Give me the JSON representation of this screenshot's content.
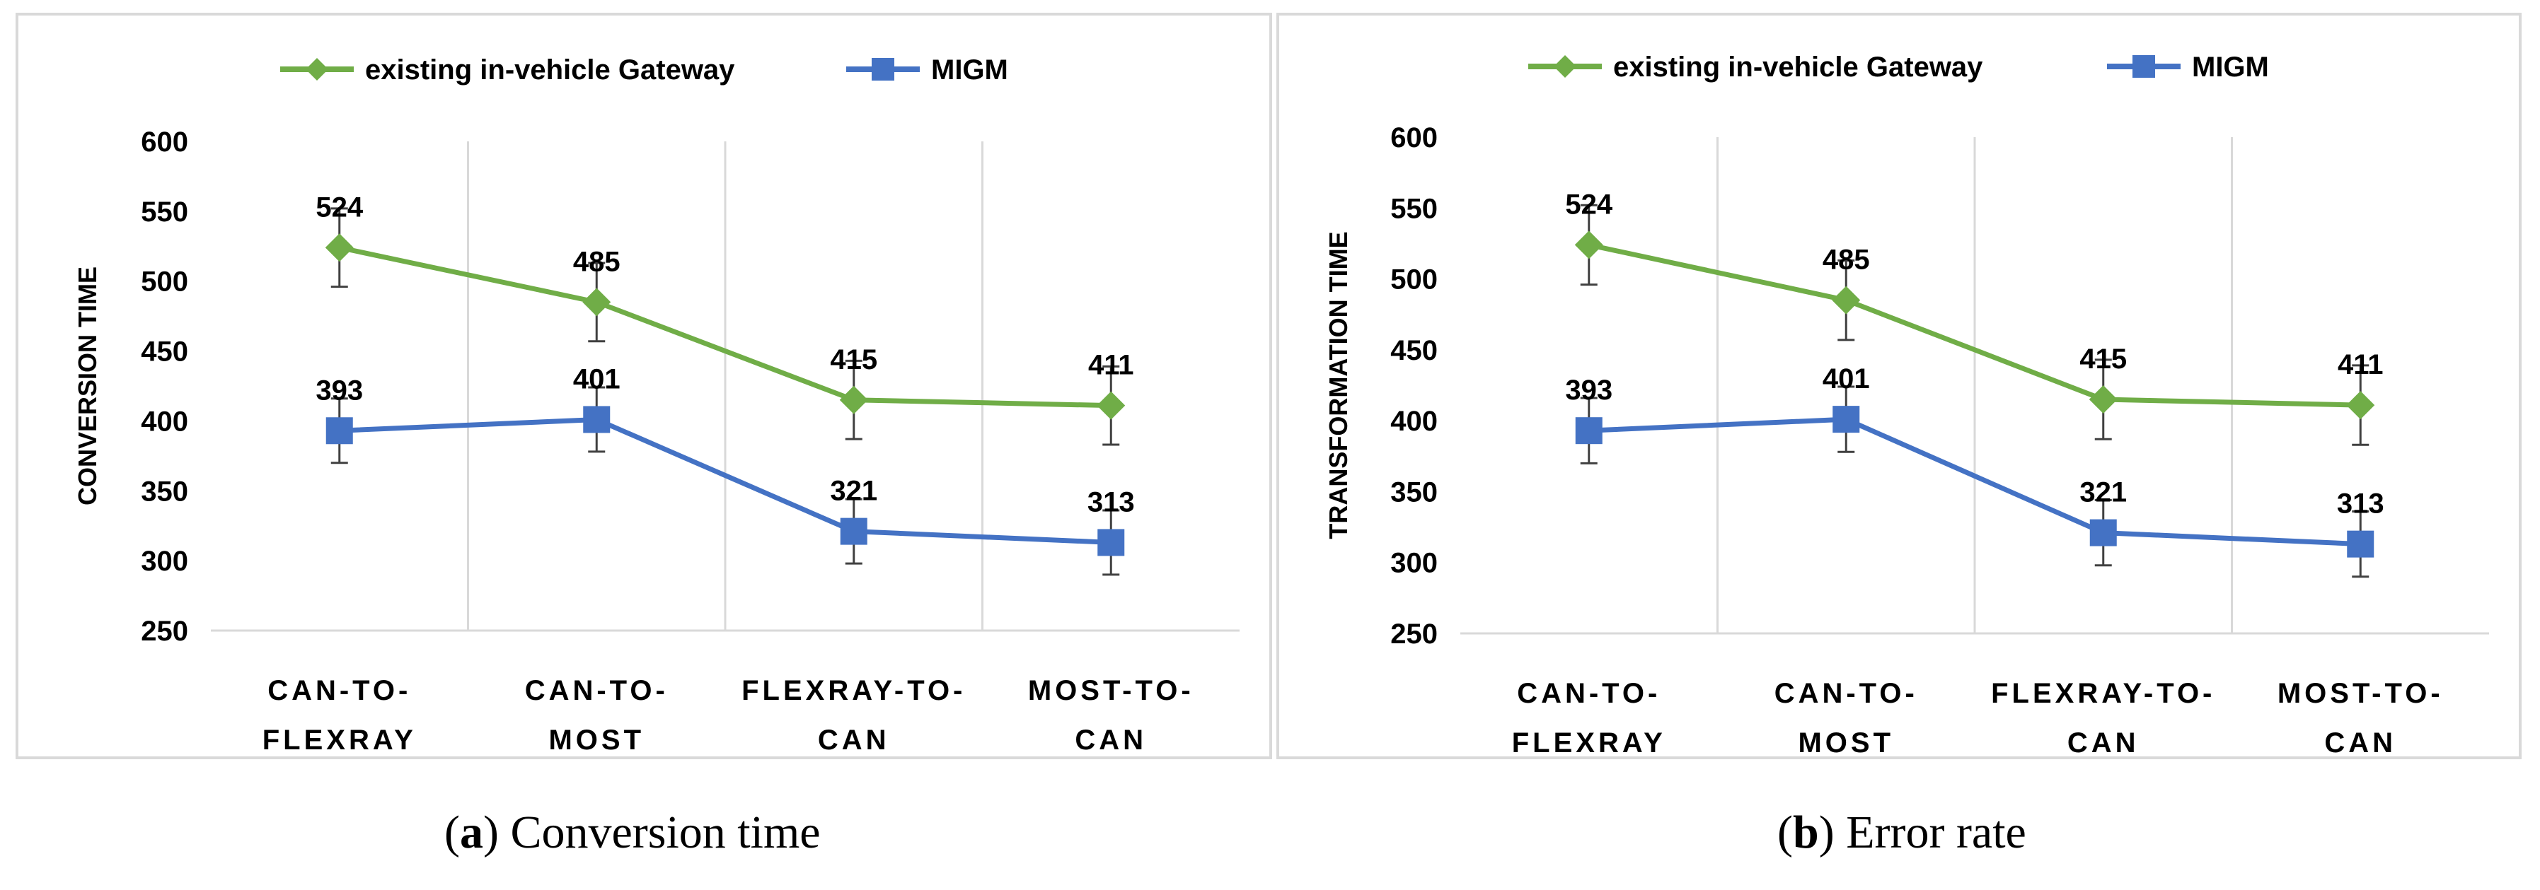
{
  "colors": {
    "gateway": "#70ad47",
    "migm": "#4472c4",
    "grid": "#d9d9d9",
    "text": "#000000",
    "errorbar": "#404040"
  },
  "captions": [
    {
      "letter": "a",
      "text": "Conversion time",
      "open": "(",
      "close": ")"
    },
    {
      "letter": "b",
      "text": "Error rate",
      "open": "(",
      "close": ")"
    }
  ],
  "chart_data": [
    {
      "type": "line",
      "title": "",
      "ylabel": "CONVERSION TIME",
      "xlabel": "",
      "ylim": [
        250,
        600
      ],
      "yticks": [
        250,
        300,
        350,
        400,
        450,
        500,
        550,
        600
      ],
      "categories": [
        [
          "CAN-TO-",
          "FLEXRAY"
        ],
        [
          "CAN-TO-",
          "MOST"
        ],
        [
          "FLEXRAY-TO-",
          "CAN"
        ],
        [
          "MOST-TO-",
          "CAN"
        ]
      ],
      "legend_position": "top",
      "series": [
        {
          "name": "existing in-vehicle Gateway",
          "marker": "diamond",
          "values": [
            524,
            485,
            415,
            411
          ],
          "labels": [
            "524",
            "485",
            "415",
            "411"
          ],
          "error": [
            28,
            28,
            28,
            28
          ]
        },
        {
          "name": "MIGM",
          "marker": "square",
          "values": [
            393,
            401,
            321,
            313
          ],
          "labels": [
            "393",
            "401",
            "321",
            "313"
          ],
          "error": [
            23,
            23,
            23,
            23
          ]
        }
      ]
    },
    {
      "type": "line",
      "title": "",
      "ylabel": "TRANSFORMATION TIME",
      "xlabel": "",
      "ylim": [
        250,
        600
      ],
      "yticks": [
        250,
        300,
        350,
        400,
        450,
        500,
        550,
        600
      ],
      "categories": [
        [
          "CAN-TO-",
          "FLEXRAY"
        ],
        [
          "CAN-TO-",
          "MOST"
        ],
        [
          "FLEXRAY-TO-",
          "CAN"
        ],
        [
          "MOST-TO-",
          "CAN"
        ]
      ],
      "legend_position": "top",
      "series": [
        {
          "name": "existing in-vehicle Gateway",
          "marker": "diamond",
          "values": [
            524,
            485,
            415,
            411
          ],
          "labels": [
            "524",
            "485",
            "415",
            "411"
          ],
          "error": [
            28,
            28,
            28,
            28
          ]
        },
        {
          "name": "MIGM",
          "marker": "square",
          "values": [
            393,
            401,
            321,
            313
          ],
          "labels": [
            "393",
            "401",
            "321",
            "313"
          ],
          "error": [
            23,
            23,
            23,
            23
          ]
        }
      ]
    }
  ]
}
